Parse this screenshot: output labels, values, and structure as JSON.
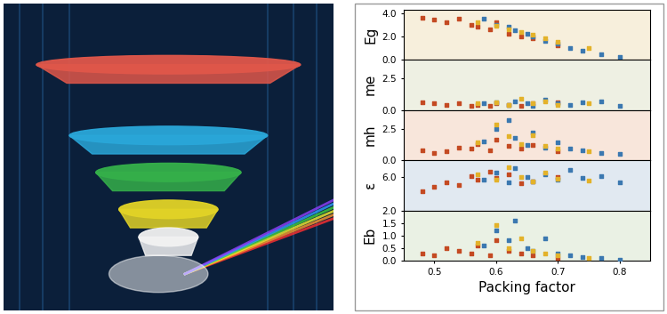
{
  "chart_data": [
    {
      "type": "scatter",
      "y_label": "Eg",
      "tick_labels": "y",
      "marker": "s",
      "xlim": [
        0.45,
        0.85
      ],
      "xticks": [
        0.5,
        0.6,
        0.7,
        0.8
      ],
      "ylim": [
        0,
        4.3
      ],
      "yticks": [
        {
          "value": 0,
          "label": "0.0"
        },
        {
          "value": 2,
          "label": "2.0"
        },
        {
          "value": 4,
          "label": "4.0"
        }
      ],
      "series": [
        {
          "color": "#c44a22",
          "x": [
            0.48,
            0.5,
            0.52,
            0.54,
            0.56,
            0.57,
            0.59,
            0.6,
            0.62,
            0.64,
            0.66,
            0.7
          ],
          "values": [
            3.6,
            3.4,
            3.2,
            3.5,
            3.0,
            2.8,
            2.6,
            3.2,
            2.2,
            2.0,
            1.8,
            1.2
          ]
        },
        {
          "color": "#3b78b0",
          "x": [
            0.58,
            0.6,
            0.62,
            0.63,
            0.65,
            0.66,
            0.68,
            0.7,
            0.72,
            0.74,
            0.77,
            0.8
          ],
          "values": [
            3.5,
            3.0,
            2.8,
            2.5,
            2.2,
            2.0,
            1.6,
            1.4,
            1.0,
            0.8,
            0.5,
            0.2
          ]
        },
        {
          "color": "#e3b22a",
          "x": [
            0.57,
            0.6,
            0.62,
            0.64,
            0.66,
            0.68,
            0.7,
            0.75
          ],
          "values": [
            3.2,
            2.9,
            2.6,
            2.4,
            2.1,
            1.8,
            1.5,
            1.0
          ]
        }
      ]
    },
    {
      "type": "scatter",
      "y_label": "me",
      "tick_labels": "y",
      "marker": "s",
      "xlim": [
        0.45,
        0.85
      ],
      "xticks": [
        0.5,
        0.6,
        0.7,
        0.8
      ],
      "ylim": [
        0,
        4
      ],
      "yticks": [
        {
          "value": 0,
          "label": "0.0"
        },
        2.5
      ],
      "series": [
        {
          "color": "#c44a22",
          "x": [
            0.48,
            0.5,
            0.52,
            0.54,
            0.56,
            0.57,
            0.59,
            0.6,
            0.62,
            0.64,
            0.66,
            0.7
          ],
          "values": [
            0.6,
            0.5,
            0.4,
            0.5,
            0.3,
            0.4,
            0.3,
            0.5,
            0.4,
            0.3,
            0.5,
            0.6
          ]
        },
        {
          "color": "#3b78b0",
          "x": [
            0.58,
            0.6,
            0.62,
            0.63,
            0.65,
            0.66,
            0.68,
            0.7,
            0.72,
            0.74,
            0.77,
            0.8
          ],
          "values": [
            0.5,
            0.6,
            0.4,
            0.7,
            0.5,
            0.3,
            0.8,
            0.5,
            0.4,
            0.6,
            0.7,
            0.3
          ]
        },
        {
          "color": "#e3b22a",
          "x": [
            0.57,
            0.6,
            0.62,
            0.64,
            0.66,
            0.68,
            0.7,
            0.75
          ],
          "values": [
            0.5,
            0.6,
            0.4,
            0.9,
            0.5,
            0.7,
            0.4,
            0.5
          ]
        }
      ]
    },
    {
      "type": "scatter",
      "y_label": "mh",
      "tick_labels": "y",
      "marker": "s",
      "xlim": [
        0.45,
        0.85
      ],
      "xticks": [
        0.5,
        0.6,
        0.7,
        0.8
      ],
      "ylim": [
        0,
        4
      ],
      "yticks": [
        {
          "value": 0,
          "label": "0.0"
        },
        2.5
      ],
      "series": [
        {
          "color": "#c44a22",
          "x": [
            0.48,
            0.5,
            0.52,
            0.54,
            0.56,
            0.57,
            0.59,
            0.6,
            0.62,
            0.64,
            0.66,
            0.7
          ],
          "values": [
            0.8,
            0.6,
            0.7,
            1.0,
            0.9,
            1.3,
            0.8,
            1.6,
            1.1,
            0.9,
            1.2,
            0.7
          ]
        },
        {
          "color": "#3b78b0",
          "x": [
            0.58,
            0.6,
            0.62,
            0.63,
            0.65,
            0.66,
            0.68,
            0.7,
            0.72,
            0.74,
            0.77,
            0.8
          ],
          "values": [
            1.5,
            2.5,
            3.2,
            1.8,
            1.2,
            2.2,
            1.0,
            1.4,
            0.9,
            0.8,
            0.6,
            0.5
          ]
        },
        {
          "color": "#e3b22a",
          "x": [
            0.57,
            0.6,
            0.62,
            0.64,
            0.66,
            0.68,
            0.7,
            0.75
          ],
          "values": [
            1.4,
            2.8,
            1.9,
            1.3,
            2.0,
            1.1,
            0.9,
            0.7
          ]
        }
      ]
    },
    {
      "type": "scatter",
      "y_label": "ε",
      "tick_labels": "y",
      "marker": "s",
      "xlim": [
        0.45,
        0.85
      ],
      "xticks": [
        0.5,
        0.6,
        0.7,
        0.8
      ],
      "ylim": [
        0,
        9
      ],
      "yticks": [
        {
          "value": 6,
          "label": "6.0"
        }
      ],
      "series": [
        {
          "color": "#c44a22",
          "x": [
            0.48,
            0.5,
            0.52,
            0.54,
            0.56,
            0.57,
            0.59,
            0.6,
            0.62,
            0.64,
            0.66,
            0.7
          ],
          "values": [
            3.5,
            4.2,
            5.0,
            4.5,
            6.2,
            5.5,
            7.0,
            5.8,
            6.5,
            4.8,
            5.2,
            6.0
          ]
        },
        {
          "color": "#3b78b0",
          "x": [
            0.58,
            0.6,
            0.62,
            0.63,
            0.65,
            0.66,
            0.68,
            0.7,
            0.72,
            0.74,
            0.77,
            0.8
          ],
          "values": [
            5.5,
            6.8,
            5.0,
            7.5,
            6.0,
            5.2,
            6.4,
            5.5,
            7.2,
            5.8,
            6.2,
            5.0
          ]
        },
        {
          "color": "#e3b22a",
          "x": [
            0.57,
            0.6,
            0.62,
            0.64,
            0.66,
            0.68,
            0.7,
            0.75
          ],
          "values": [
            6.5,
            5.5,
            7.8,
            6.0,
            5.2,
            6.8,
            5.6,
            5.4
          ]
        }
      ]
    },
    {
      "type": "scatter",
      "y_label": "Eb",
      "x_label": "Packing factor",
      "marker": "s",
      "xlim": [
        0.45,
        0.85
      ],
      "xticks": [
        0.5,
        0.6,
        0.7,
        0.8
      ],
      "ylim": [
        0,
        2
      ],
      "yticks": [
        {
          "value": 0,
          "label": "0.0"
        },
        0.5,
        1.0,
        1.5,
        2.0
      ],
      "series": [
        {
          "color": "#c44a22",
          "x": [
            0.48,
            0.5,
            0.52,
            0.54,
            0.56,
            0.57,
            0.59,
            0.6,
            0.62,
            0.64,
            0.66,
            0.7
          ],
          "values": [
            0.3,
            0.2,
            0.5,
            0.4,
            0.3,
            0.6,
            0.2,
            0.8,
            0.4,
            0.3,
            0.2,
            0.1
          ]
        },
        {
          "color": "#3b78b0",
          "x": [
            0.58,
            0.6,
            0.62,
            0.63,
            0.65,
            0.66,
            0.68,
            0.7,
            0.72,
            0.74,
            0.77,
            0.8
          ],
          "values": [
            0.6,
            1.2,
            0.8,
            1.6,
            0.5,
            0.4,
            0.9,
            0.3,
            0.2,
            0.15,
            0.1,
            0.05
          ]
        },
        {
          "color": "#e3b22a",
          "x": [
            0.57,
            0.6,
            0.62,
            0.64,
            0.66,
            0.68,
            0.7,
            0.75
          ],
          "values": [
            0.7,
            1.4,
            0.5,
            0.9,
            0.4,
            0.3,
            0.2,
            0.1
          ]
        }
      ]
    }
  ]
}
